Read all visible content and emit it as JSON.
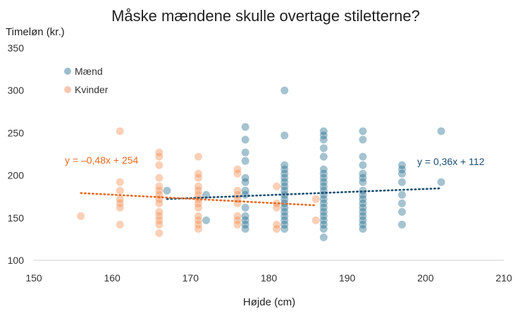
{
  "chart_data": {
    "type": "scatter",
    "title": "Måske mændene skulle overtage stiletterne?",
    "ylabel": "Timeløn (kr.)",
    "xlabel": "Højde (cm)",
    "xlim": [
      150,
      210
    ],
    "ylim": [
      100,
      350
    ],
    "xticks": [
      "150",
      "160",
      "170",
      "180",
      "190",
      "200",
      "210"
    ],
    "yticks": [
      "100",
      "150",
      "200",
      "250",
      "300",
      "350"
    ],
    "grid": false,
    "legend_position": "top-left",
    "colors": {
      "men": "#1f6a8a",
      "women": "#f28a4b",
      "men_line": "#1b4f72",
      "women_line": "#e86a1e"
    },
    "series": [
      {
        "name": "Mænd",
        "points": [
          [
            167,
            182
          ],
          [
            172,
            177
          ],
          [
            172,
            147
          ],
          [
            177,
            257
          ],
          [
            177,
            242
          ],
          [
            177,
            227
          ],
          [
            177,
            217
          ],
          [
            177,
            197
          ],
          [
            177,
            192
          ],
          [
            177,
            182
          ],
          [
            177,
            177
          ],
          [
            177,
            162
          ],
          [
            177,
            152
          ],
          [
            177,
            147
          ],
          [
            177,
            142
          ],
          [
            177,
            137
          ],
          [
            182,
            300
          ],
          [
            182,
            247
          ],
          [
            182,
            212
          ],
          [
            182,
            207
          ],
          [
            182,
            202
          ],
          [
            182,
            197
          ],
          [
            182,
            192
          ],
          [
            182,
            187
          ],
          [
            182,
            182
          ],
          [
            182,
            177
          ],
          [
            182,
            172
          ],
          [
            182,
            167
          ],
          [
            182,
            162
          ],
          [
            182,
            157
          ],
          [
            182,
            152
          ],
          [
            182,
            147
          ],
          [
            182,
            142
          ],
          [
            182,
            137
          ],
          [
            187,
            252
          ],
          [
            187,
            247
          ],
          [
            187,
            242
          ],
          [
            187,
            232
          ],
          [
            187,
            222
          ],
          [
            187,
            207
          ],
          [
            187,
            202
          ],
          [
            187,
            197
          ],
          [
            187,
            192
          ],
          [
            187,
            187
          ],
          [
            187,
            182
          ],
          [
            187,
            177
          ],
          [
            187,
            172
          ],
          [
            187,
            167
          ],
          [
            187,
            162
          ],
          [
            187,
            157
          ],
          [
            187,
            152
          ],
          [
            187,
            147
          ],
          [
            187,
            142
          ],
          [
            187,
            137
          ],
          [
            187,
            127
          ],
          [
            192,
            252
          ],
          [
            192,
            242
          ],
          [
            192,
            222
          ],
          [
            192,
            212
          ],
          [
            192,
            202
          ],
          [
            192,
            197
          ],
          [
            192,
            192
          ],
          [
            192,
            182
          ],
          [
            192,
            177
          ],
          [
            192,
            172
          ],
          [
            192,
            167
          ],
          [
            192,
            162
          ],
          [
            192,
            157
          ],
          [
            192,
            152
          ],
          [
            192,
            147
          ],
          [
            192,
            142
          ],
          [
            192,
            137
          ],
          [
            197,
            212
          ],
          [
            197,
            207
          ],
          [
            197,
            202
          ],
          [
            197,
            192
          ],
          [
            197,
            177
          ],
          [
            197,
            167
          ],
          [
            197,
            157
          ],
          [
            197,
            142
          ],
          [
            202,
            252
          ],
          [
            202,
            192
          ]
        ],
        "trendline": {
          "label": "y = 0,36x + 112",
          "slope": 0.36,
          "intercept": 112,
          "x_range": [
            167,
            202
          ]
        }
      },
      {
        "name": "Kvinder",
        "points": [
          [
            156,
            152
          ],
          [
            161,
            252
          ],
          [
            161,
            192
          ],
          [
            161,
            182
          ],
          [
            161,
            172
          ],
          [
            161,
            167
          ],
          [
            161,
            162
          ],
          [
            161,
            142
          ],
          [
            166,
            227
          ],
          [
            166,
            222
          ],
          [
            166,
            212
          ],
          [
            166,
            197
          ],
          [
            166,
            187
          ],
          [
            166,
            182
          ],
          [
            166,
            177
          ],
          [
            166,
            172
          ],
          [
            166,
            167
          ],
          [
            166,
            157
          ],
          [
            166,
            152
          ],
          [
            166,
            147
          ],
          [
            166,
            142
          ],
          [
            166,
            132
          ],
          [
            171,
            222
          ],
          [
            171,
            202
          ],
          [
            171,
            197
          ],
          [
            171,
            187
          ],
          [
            171,
            182
          ],
          [
            171,
            177
          ],
          [
            171,
            172
          ],
          [
            171,
            167
          ],
          [
            171,
            162
          ],
          [
            171,
            152
          ],
          [
            171,
            147
          ],
          [
            171,
            142
          ],
          [
            171,
            137
          ],
          [
            176,
            207
          ],
          [
            176,
            202
          ],
          [
            176,
            182
          ],
          [
            176,
            177
          ],
          [
            176,
            172
          ],
          [
            176,
            167
          ],
          [
            176,
            152
          ],
          [
            176,
            147
          ],
          [
            176,
            142
          ],
          [
            181,
            187
          ],
          [
            181,
            167
          ],
          [
            181,
            162
          ],
          [
            181,
            142
          ],
          [
            181,
            137
          ],
          [
            186,
            172
          ],
          [
            186,
            147
          ]
        ],
        "trendline": {
          "label": "y = –0,48x + 254",
          "slope": -0.48,
          "intercept": 254,
          "x_range": [
            156,
            186
          ]
        }
      }
    ]
  }
}
